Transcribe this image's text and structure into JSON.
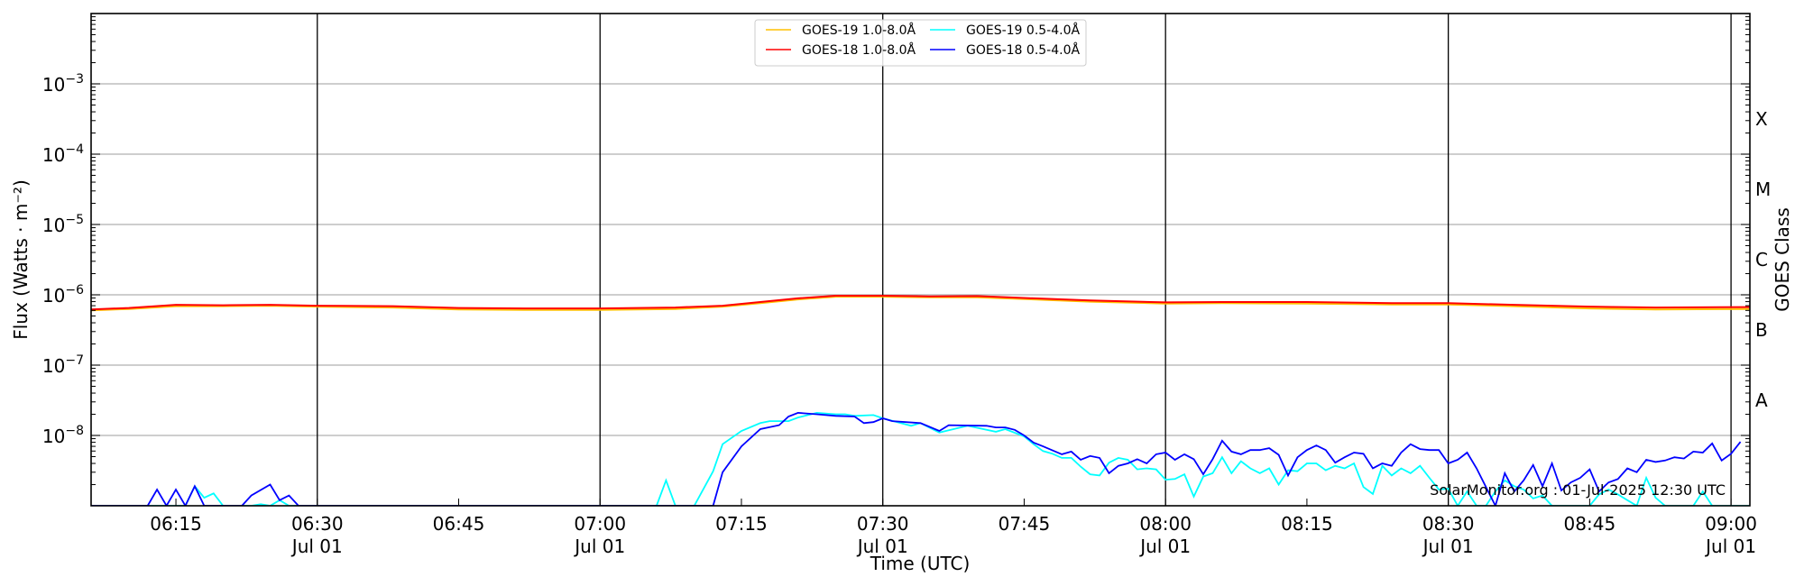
{
  "chart_data": {
    "type": "line",
    "title": "",
    "xlabel": "Time (UTC)",
    "ylabel": "Flux (Watts · m⁻²)",
    "y2label": "GOES Class",
    "x_unit": "minutes after 06:00 UTC, 01 Jul",
    "xlim": [
      6,
      182
    ],
    "ylim": [
      1e-09,
      0.01
    ],
    "yscale": "log",
    "grid": "horizontal major",
    "legend_position": "top-center",
    "date_label": "Jul 01",
    "x_ticks": [
      {
        "t": 15,
        "label": "06:15"
      },
      {
        "t": 30,
        "label": "06:30",
        "date": true
      },
      {
        "t": 45,
        "label": "06:45"
      },
      {
        "t": 60,
        "label": "07:00",
        "date": true
      },
      {
        "t": 75,
        "label": "07:15"
      },
      {
        "t": 90,
        "label": "07:30",
        "date": true
      },
      {
        "t": 105,
        "label": "07:45"
      },
      {
        "t": 120,
        "label": "08:00",
        "date": true
      },
      {
        "t": 135,
        "label": "08:15"
      },
      {
        "t": 150,
        "label": "08:30",
        "date": true
      },
      {
        "t": 165,
        "label": "08:45"
      },
      {
        "t": 180,
        "label": "09:00",
        "date": true
      }
    ],
    "vertical_lines": [
      30,
      60,
      90,
      120,
      150,
      180
    ],
    "y_ticks": [
      {
        "exp": -8,
        "base": "10",
        "sup": "−8"
      },
      {
        "exp": -7,
        "base": "10",
        "sup": "−7"
      },
      {
        "exp": -6,
        "base": "10",
        "sup": "−6"
      },
      {
        "exp": -5,
        "base": "10",
        "sup": "−5"
      },
      {
        "exp": -4,
        "base": "10",
        "sup": "−4"
      },
      {
        "exp": -3,
        "base": "10",
        "sup": "−3"
      }
    ],
    "goes_classes": [
      {
        "label": "A",
        "exp": -8
      },
      {
        "label": "B",
        "exp": -7
      },
      {
        "label": "C",
        "exp": -6
      },
      {
        "label": "M",
        "exp": -5
      },
      {
        "label": "X",
        "exp": -4
      }
    ],
    "series": [
      {
        "name": "GOES-19 1.0-8.0Å",
        "color": "#ffc000",
        "points": [
          [
            6,
            6e-07
          ],
          [
            10,
            6.3e-07
          ],
          [
            15,
            6.9e-07
          ],
          [
            20,
            6.9e-07
          ],
          [
            25,
            7e-07
          ],
          [
            30,
            6.8e-07
          ],
          [
            38,
            6.6e-07
          ],
          [
            45,
            6.2e-07
          ],
          [
            52,
            6.1e-07
          ],
          [
            60,
            6.1e-07
          ],
          [
            68,
            6.3e-07
          ],
          [
            73,
            6.8e-07
          ],
          [
            77,
            7.6e-07
          ],
          [
            81,
            8.6e-07
          ],
          [
            85,
            9.4e-07
          ],
          [
            90,
            9.4e-07
          ],
          [
            95,
            9.2e-07
          ],
          [
            100,
            9.2e-07
          ],
          [
            106,
            8.6e-07
          ],
          [
            112,
            8e-07
          ],
          [
            120,
            7.5e-07
          ],
          [
            126,
            7.6e-07
          ],
          [
            135,
            7.5e-07
          ],
          [
            144,
            7.3e-07
          ],
          [
            150,
            7.3e-07
          ],
          [
            157,
            6.9e-07
          ],
          [
            165,
            6.4e-07
          ],
          [
            172,
            6.2e-07
          ],
          [
            182,
            6.3e-07
          ]
        ]
      },
      {
        "name": "GOES-18 1.0-8.0Å",
        "color": "#ff0000",
        "points": [
          [
            6,
            6.2e-07
          ],
          [
            10,
            6.5e-07
          ],
          [
            15,
            7.2e-07
          ],
          [
            20,
            7.1e-07
          ],
          [
            25,
            7.2e-07
          ],
          [
            30,
            7e-07
          ],
          [
            38,
            6.9e-07
          ],
          [
            45,
            6.5e-07
          ],
          [
            52,
            6.4e-07
          ],
          [
            60,
            6.4e-07
          ],
          [
            68,
            6.6e-07
          ],
          [
            73,
            7e-07
          ],
          [
            77,
            7.9e-07
          ],
          [
            81,
            8.9e-07
          ],
          [
            85,
            9.7e-07
          ],
          [
            90,
            9.7e-07
          ],
          [
            95,
            9.5e-07
          ],
          [
            100,
            9.6e-07
          ],
          [
            106,
            8.9e-07
          ],
          [
            112,
            8.3e-07
          ],
          [
            120,
            7.8e-07
          ],
          [
            126,
            7.9e-07
          ],
          [
            135,
            7.9e-07
          ],
          [
            144,
            7.6e-07
          ],
          [
            150,
            7.6e-07
          ],
          [
            157,
            7.2e-07
          ],
          [
            165,
            6.8e-07
          ],
          [
            172,
            6.6e-07
          ],
          [
            182,
            6.7e-07
          ]
        ]
      },
      {
        "name": "GOES-19 0.5-4.0Å",
        "color": "#00ffff",
        "points": [
          [
            6,
            1e-09
          ],
          [
            16,
            1e-09
          ],
          [
            17,
            1.9e-09
          ],
          [
            18,
            1.3e-09
          ],
          [
            19,
            1.5e-09
          ],
          [
            20,
            1e-09
          ],
          [
            23,
            1e-09
          ],
          [
            24,
            1.05e-09
          ],
          [
            25,
            1e-09
          ],
          [
            26,
            1.2e-09
          ],
          [
            27,
            1e-09
          ],
          [
            66,
            1e-09
          ],
          [
            67,
            2.3e-09
          ],
          [
            68,
            1e-09
          ],
          [
            70,
            1e-09
          ],
          [
            72,
            3.1e-09
          ],
          [
            73,
            7.5e-09
          ],
          [
            75,
            1.16e-08
          ],
          [
            77,
            1.5e-08
          ],
          [
            78,
            1.6e-08
          ],
          [
            80,
            1.6e-08
          ],
          [
            81,
            1.8e-08
          ],
          [
            83,
            2.1e-08
          ],
          [
            85,
            2e-08
          ],
          [
            86,
            2e-08
          ],
          [
            87,
            1.9e-08
          ],
          [
            89,
            1.95e-08
          ],
          [
            90,
            1.75e-08
          ],
          [
            93,
            1.37e-08
          ],
          [
            94,
            1.5e-08
          ],
          [
            96,
            1.1e-08
          ],
          [
            99,
            1.37e-08
          ],
          [
            102,
            1.13e-08
          ],
          [
            103,
            1.23e-08
          ],
          [
            105,
            9.7e-09
          ],
          [
            106,
            7.5e-09
          ],
          [
            107,
            6e-09
          ],
          [
            108,
            5.5e-09
          ],
          [
            109,
            4.8e-09
          ],
          [
            110,
            4.8e-09
          ],
          [
            111,
            3.6e-09
          ],
          [
            112,
            2.8e-09
          ],
          [
            113,
            2.7e-09
          ],
          [
            114,
            4.1e-09
          ],
          [
            115,
            4.8e-09
          ],
          [
            116,
            4.5e-09
          ],
          [
            117,
            3.3e-09
          ],
          [
            118,
            3.4e-09
          ],
          [
            119,
            3.3e-09
          ],
          [
            120,
            2.35e-09
          ],
          [
            121,
            2.4e-09
          ],
          [
            122,
            2.8e-09
          ],
          [
            123,
            1.35e-09
          ],
          [
            124,
            2.6e-09
          ],
          [
            125,
            2.9e-09
          ],
          [
            126,
            4.9e-09
          ],
          [
            127,
            2.9e-09
          ],
          [
            128,
            4.3e-09
          ],
          [
            129,
            3.4e-09
          ],
          [
            130,
            2.9e-09
          ],
          [
            131,
            3.4e-09
          ],
          [
            132,
            2e-09
          ],
          [
            133,
            3.2e-09
          ],
          [
            134,
            3.1e-09
          ],
          [
            135,
            4e-09
          ],
          [
            136,
            4e-09
          ],
          [
            137,
            3.2e-09
          ],
          [
            138,
            3.7e-09
          ],
          [
            139,
            3.4e-09
          ],
          [
            140,
            4e-09
          ],
          [
            141,
            1.85e-09
          ],
          [
            142,
            1.47e-09
          ],
          [
            143,
            3.7e-09
          ],
          [
            144,
            2.7e-09
          ],
          [
            145,
            3.4e-09
          ],
          [
            146,
            2.9e-09
          ],
          [
            147,
            3.7e-09
          ],
          [
            148,
            2.5e-09
          ],
          [
            149,
            1.7e-09
          ],
          [
            150,
            1.75e-09
          ],
          [
            151,
            1e-09
          ],
          [
            152,
            1.6e-09
          ],
          [
            153,
            1e-09
          ],
          [
            154,
            1e-09
          ],
          [
            155,
            1.6e-09
          ],
          [
            156,
            2.3e-09
          ],
          [
            157,
            1.9e-09
          ],
          [
            158,
            1.7e-09
          ],
          [
            159,
            1.27e-09
          ],
          [
            160,
            1.4e-09
          ],
          [
            161,
            1e-09
          ],
          [
            165,
            1e-09
          ],
          [
            166,
            1.45e-09
          ],
          [
            167,
            1.7e-09
          ],
          [
            168,
            1.45e-09
          ],
          [
            169,
            1.2e-09
          ],
          [
            170,
            1e-09
          ],
          [
            171,
            2.5e-09
          ],
          [
            172,
            1.3e-09
          ],
          [
            173,
            1e-09
          ],
          [
            176,
            1e-09
          ],
          [
            177,
            1.6e-09
          ],
          [
            178,
            1e-09
          ],
          [
            182,
            1e-09
          ]
        ]
      },
      {
        "name": "GOES-18 0.5-4.0Å",
        "color": "#0000ff",
        "points": [
          [
            6,
            1e-09
          ],
          [
            12,
            1e-09
          ],
          [
            13,
            1.7e-09
          ],
          [
            14,
            1e-09
          ],
          [
            15,
            1.7e-09
          ],
          [
            16,
            1e-09
          ],
          [
            17,
            1.9e-09
          ],
          [
            18,
            1e-09
          ],
          [
            22,
            1e-09
          ],
          [
            23,
            1.4e-09
          ],
          [
            25,
            2e-09
          ],
          [
            26,
            1.2e-09
          ],
          [
            27,
            1.4e-09
          ],
          [
            28,
            1e-09
          ],
          [
            72,
            1e-09
          ],
          [
            73,
            3e-09
          ],
          [
            75,
            7e-09
          ],
          [
            77,
            1.23e-08
          ],
          [
            79,
            1.4e-08
          ],
          [
            80,
            1.86e-08
          ],
          [
            81,
            2.1e-08
          ],
          [
            83,
            2e-08
          ],
          [
            85,
            1.9e-08
          ],
          [
            87,
            1.86e-08
          ],
          [
            88,
            1.5e-08
          ],
          [
            89,
            1.55e-08
          ],
          [
            90,
            1.75e-08
          ],
          [
            91,
            1.6e-08
          ],
          [
            94,
            1.5e-08
          ],
          [
            96,
            1.16e-08
          ],
          [
            97,
            1.4e-08
          ],
          [
            101,
            1.37e-08
          ],
          [
            102,
            1.3e-08
          ],
          [
            103,
            1.3e-08
          ],
          [
            104,
            1.2e-08
          ],
          [
            105,
            1e-08
          ],
          [
            106,
            7.9e-09
          ],
          [
            107,
            7e-09
          ],
          [
            109,
            5.4e-09
          ],
          [
            110,
            5.9e-09
          ],
          [
            111,
            4.5e-09
          ],
          [
            112,
            5.1e-09
          ],
          [
            113,
            4.8e-09
          ],
          [
            114,
            2.9e-09
          ],
          [
            115,
            3.7e-09
          ],
          [
            116,
            4e-09
          ],
          [
            117,
            4.6e-09
          ],
          [
            118,
            4e-09
          ],
          [
            119,
            5.4e-09
          ],
          [
            120,
            5.7e-09
          ],
          [
            121,
            4.5e-09
          ],
          [
            122,
            5.4e-09
          ],
          [
            123,
            4.6e-09
          ],
          [
            124,
            2.8e-09
          ],
          [
            125,
            4.6e-09
          ],
          [
            126,
            8.4e-09
          ],
          [
            127,
            5.9e-09
          ],
          [
            128,
            5.4e-09
          ],
          [
            129,
            6.2e-09
          ],
          [
            130,
            6.2e-09
          ],
          [
            131,
            6.6e-09
          ],
          [
            132,
            5.3e-09
          ],
          [
            133,
            2.7e-09
          ],
          [
            134,
            4.9e-09
          ],
          [
            135,
            6.2e-09
          ],
          [
            136,
            7.2e-09
          ],
          [
            137,
            6.2e-09
          ],
          [
            138,
            4.1e-09
          ],
          [
            139,
            4.9e-09
          ],
          [
            140,
            5.7e-09
          ],
          [
            141,
            5.5e-09
          ],
          [
            142,
            3.4e-09
          ],
          [
            143,
            4e-09
          ],
          [
            144,
            3.7e-09
          ],
          [
            145,
            5.7e-09
          ],
          [
            146,
            7.5e-09
          ],
          [
            147,
            6.4e-09
          ],
          [
            148,
            6.2e-09
          ],
          [
            149,
            6.2e-09
          ],
          [
            150,
            4e-09
          ],
          [
            151,
            4.5e-09
          ],
          [
            152,
            5.7e-09
          ],
          [
            153,
            3.4e-09
          ],
          [
            154,
            1.85e-09
          ],
          [
            155,
            1e-09
          ],
          [
            156,
            2.9e-09
          ],
          [
            157,
            1.6e-09
          ],
          [
            158,
            2.3e-09
          ],
          [
            159,
            3.8e-09
          ],
          [
            160,
            1.9e-09
          ],
          [
            161,
            4e-09
          ],
          [
            162,
            1.65e-09
          ],
          [
            163,
            2.15e-09
          ],
          [
            164,
            2.5e-09
          ],
          [
            165,
            3.3e-09
          ],
          [
            166,
            1.6e-09
          ],
          [
            167,
            2.15e-09
          ],
          [
            168,
            2.4e-09
          ],
          [
            169,
            3.4e-09
          ],
          [
            170,
            3e-09
          ],
          [
            171,
            4.5e-09
          ],
          [
            172,
            4.2e-09
          ],
          [
            173,
            4.4e-09
          ],
          [
            174,
            4.9e-09
          ],
          [
            175,
            4.7e-09
          ],
          [
            176,
            5.9e-09
          ],
          [
            177,
            5.7e-09
          ],
          [
            178,
            7.7e-09
          ],
          [
            179,
            4.4e-09
          ],
          [
            180,
            5.5e-09
          ],
          [
            181,
            8.1e-09
          ]
        ]
      }
    ],
    "annotation": "SolarMonitor.org : 01-Jul-2025 12:30 UTC"
  }
}
